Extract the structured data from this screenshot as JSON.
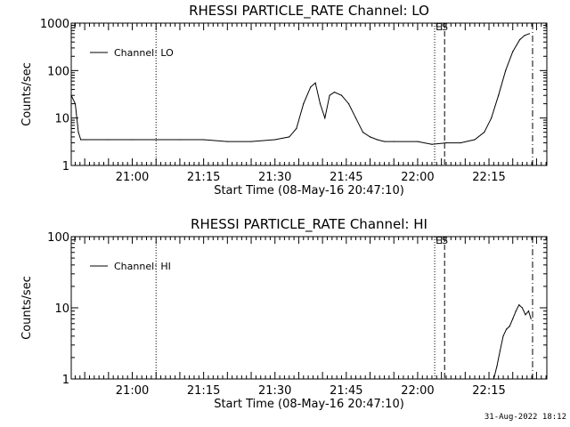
{
  "footer": {
    "timestamp": "31-Aug-2022 18:12"
  },
  "chart_data": [
    {
      "type": "line",
      "title": "RHESSI PARTICLE_RATE Channel: LO",
      "xlabel": "Start Time (08-May-16 20:47:10)",
      "ylabel": "Counts/sec",
      "yscale": "log",
      "ylim": [
        1,
        1000
      ],
      "xlim": [
        "20:47:10",
        "22:27:10"
      ],
      "xticks": [
        "21:00",
        "21:15",
        "21:30",
        "21:45",
        "22:00",
        "22:15"
      ],
      "yticks": [
        "1",
        "10",
        "100",
        "1000"
      ],
      "grid": false,
      "legend": {
        "position": "top-left",
        "entries": [
          "Channel: LO"
        ]
      },
      "marker_labels": [
        "ES"
      ],
      "series": [
        {
          "name": "Channel: LO",
          "x": [
            "20:47:10",
            "20:48:00",
            "20:48:40",
            "20:49:10",
            "20:50:00",
            "20:55:00",
            "21:00:00",
            "21:05:00",
            "21:10:00",
            "21:15:00",
            "21:20:00",
            "21:25:00",
            "21:30:00",
            "21:33:00",
            "21:34:30",
            "21:36:00",
            "21:37:30",
            "21:38:30",
            "21:39:30",
            "21:40:30",
            "21:41:30",
            "21:42:30",
            "21:44:00",
            "21:45:30",
            "21:47:00",
            "21:48:30",
            "21:50:00",
            "21:51:30",
            "21:53:00",
            "21:55:00",
            "22:00:00",
            "22:03:00",
            "22:06:00",
            "22:09:00",
            "22:12:00",
            "22:14:00",
            "22:15:30",
            "22:17:00",
            "22:18:30",
            "22:20:00",
            "22:21:30",
            "22:22:30",
            "22:23:30"
          ],
          "values": [
            30,
            20,
            5,
            3.5,
            3.5,
            3.5,
            3.5,
            3.5,
            3.5,
            3.5,
            3.2,
            3.2,
            3.5,
            4,
            6,
            20,
            45,
            55,
            20,
            10,
            30,
            35,
            30,
            20,
            10,
            5,
            4,
            3.5,
            3.2,
            3.2,
            3.2,
            2.8,
            3,
            3,
            3.5,
            5,
            10,
            30,
            100,
            250,
            450,
            550,
            600
          ]
        }
      ]
    },
    {
      "type": "line",
      "title": "RHESSI PARTICLE_RATE Channel: HI",
      "xlabel": "Start Time (08-May-16 20:47:10)",
      "ylabel": "Counts/sec",
      "yscale": "log",
      "ylim": [
        1,
        100
      ],
      "xlim": [
        "20:47:10",
        "22:27:10"
      ],
      "xticks": [
        "21:00",
        "21:15",
        "21:30",
        "21:45",
        "22:00",
        "22:15"
      ],
      "yticks": [
        "1",
        "10",
        "100"
      ],
      "grid": false,
      "legend": {
        "position": "top-left",
        "entries": [
          "Channel: HI"
        ]
      },
      "marker_labels": [
        "ES"
      ],
      "series": [
        {
          "name": "Channel: HI",
          "x": [
            "22:16:00",
            "22:16:40",
            "22:17:20",
            "22:18:00",
            "22:18:40",
            "22:19:20",
            "22:20:00",
            "22:20:40",
            "22:21:20",
            "22:22:00",
            "22:22:40",
            "22:23:20",
            "22:23:50"
          ],
          "values": [
            1,
            1.5,
            2.5,
            4,
            5,
            5.5,
            7,
            9,
            11,
            10,
            8,
            9,
            7
          ]
        }
      ]
    }
  ]
}
